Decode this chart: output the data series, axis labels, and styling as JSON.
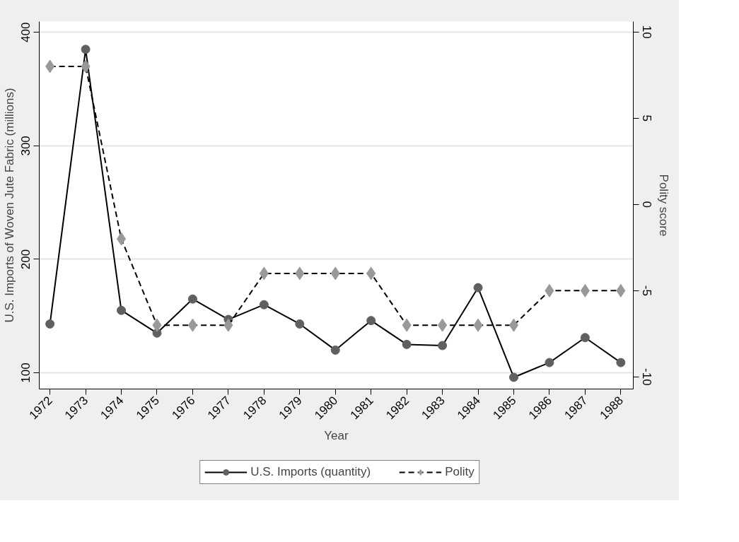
{
  "chart_data": {
    "type": "line",
    "xlabel": "Year",
    "ylabel": "U.S. Imports of Woven Jute Fabric (millions)",
    "y2label": "Polity score",
    "x": [
      1972,
      1973,
      1974,
      1975,
      1976,
      1977,
      1978,
      1979,
      1980,
      1981,
      1982,
      1983,
      1984,
      1985,
      1986,
      1987,
      1988
    ],
    "xlim": [
      1971.7,
      1988.35
    ],
    "xticks": [
      1972,
      1973,
      1974,
      1975,
      1976,
      1977,
      1978,
      1979,
      1980,
      1981,
      1982,
      1983,
      1984,
      1985,
      1986,
      1987,
      1988
    ],
    "ylim": [
      85.7,
      409.5
    ],
    "yticks": [
      100,
      200,
      300,
      400
    ],
    "y2lim": [
      -10.7,
      10.6
    ],
    "y2ticks": [
      -10,
      -5,
      0,
      5,
      10
    ],
    "grid": "y",
    "legend": "bottom",
    "series": [
      {
        "name": "U.S. Imports (quantity)",
        "color": "#606060",
        "marker": "circle",
        "line_style": "solid",
        "values": [
          143,
          385,
          155,
          135,
          165,
          147,
          160,
          143,
          120,
          146,
          125,
          124,
          175,
          96,
          109,
          131,
          109
        ]
      },
      {
        "name": "Polity",
        "color": "#999999",
        "marker": "diamond",
        "line_style": "dashed",
        "axis": "y2",
        "values": [
          8,
          8,
          -2,
          -7,
          -7,
          -7,
          -4,
          -4,
          -4,
          -4,
          -7,
          -7,
          -7,
          -7,
          -5,
          -5,
          -5
        ]
      }
    ]
  }
}
